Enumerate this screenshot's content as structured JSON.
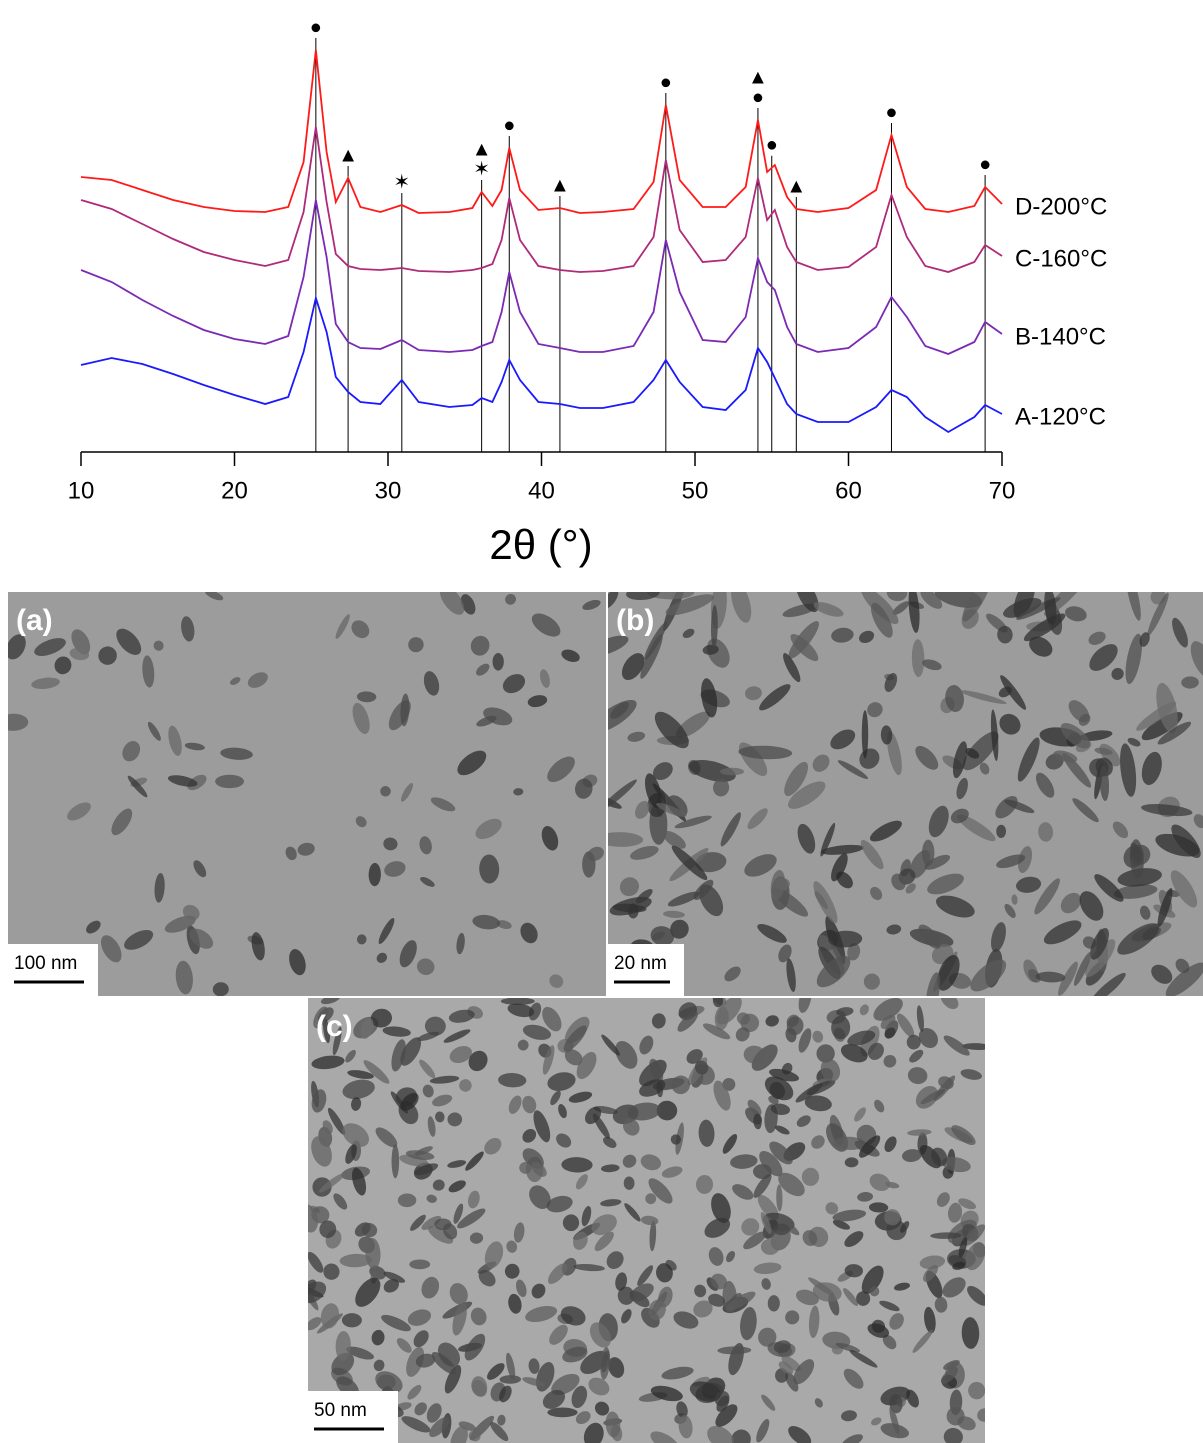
{
  "chart_data": {
    "type": "line",
    "xlabel": "2θ (°)",
    "xlim": [
      10,
      70
    ],
    "xticks": [
      10,
      20,
      30,
      40,
      50,
      60,
      70
    ],
    "ylim": [
      0,
      432
    ],
    "x": [
      10,
      12,
      14,
      16,
      18,
      20,
      22,
      23.5,
      24.5,
      25.3,
      26,
      26.6,
      27.4,
      28.2,
      29.5,
      30.9,
      32,
      34,
      35.5,
      36.1,
      36.8,
      37.4,
      37.9,
      38.6,
      39.8,
      41.2,
      42.5,
      44,
      46,
      47.3,
      48.1,
      49,
      50.5,
      52,
      53.3,
      54.1,
      54.7,
      55.2,
      56,
      56.6,
      58,
      60,
      61.8,
      62.8,
      63.8,
      65,
      66.5,
      68.2,
      68.9,
      70
    ],
    "series": [
      {
        "name": "D-200°C",
        "color": "#ff1a1a",
        "values": [
          275,
          272,
          262,
          252,
          245,
          241,
          240,
          245,
          290,
          402,
          300,
          250,
          274,
          245,
          240,
          247,
          239,
          240,
          244,
          260,
          246,
          262,
          304,
          262,
          242,
          244,
          239,
          240,
          243,
          270,
          347,
          272,
          245,
          245,
          265,
          332,
          280,
          287,
          255,
          243,
          240,
          244,
          262,
          317,
          265,
          243,
          240,
          246,
          265,
          248
        ]
      },
      {
        "name": "C-160°C",
        "color": "#b02a7a",
        "values": [
          252,
          243,
          228,
          213,
          200,
          192,
          186,
          192,
          240,
          325,
          250,
          198,
          186,
          183,
          182,
          184,
          181,
          180,
          182,
          184,
          188,
          212,
          254,
          212,
          186,
          182,
          180,
          181,
          186,
          215,
          292,
          222,
          190,
          192,
          215,
          274,
          232,
          242,
          205,
          190,
          182,
          185,
          205,
          257,
          215,
          186,
          180,
          190,
          207,
          196
        ]
      },
      {
        "name": "B-140°C",
        "color": "#7a2ab4",
        "values": [
          182,
          170,
          152,
          136,
          122,
          113,
          108,
          116,
          175,
          252,
          195,
          128,
          110,
          104,
          103,
          112,
          102,
          100,
          102,
          106,
          110,
          140,
          180,
          140,
          108,
          104,
          100,
          100,
          106,
          140,
          212,
          160,
          112,
          110,
          135,
          194,
          170,
          162,
          125,
          108,
          100,
          104,
          125,
          155,
          135,
          106,
          98,
          110,
          130,
          118
        ]
      },
      {
        "name": "A-120°C",
        "color": "#1a1aff",
        "values": [
          87,
          94,
          88,
          78,
          67,
          57,
          48,
          55,
          100,
          154,
          120,
          75,
          60,
          50,
          48,
          72,
          50,
          45,
          47,
          54,
          50,
          70,
          92,
          72,
          50,
          48,
          44,
          44,
          50,
          72,
          92,
          70,
          45,
          42,
          62,
          104,
          90,
          74,
          48,
          38,
          30,
          30,
          45,
          62,
          55,
          35,
          20,
          35,
          47,
          38
        ]
      }
    ],
    "reflections": [
      {
        "x": 25.3,
        "symbols": [
          "●"
        ]
      },
      {
        "x": 27.4,
        "symbols": [
          "▲"
        ]
      },
      {
        "x": 30.9,
        "symbols": [
          "✶"
        ]
      },
      {
        "x": 36.1,
        "symbols": [
          "✶",
          "▲"
        ]
      },
      {
        "x": 37.9,
        "symbols": [
          "●"
        ]
      },
      {
        "x": 41.2,
        "symbols": [
          "▲"
        ]
      },
      {
        "x": 48.1,
        "symbols": [
          "●"
        ]
      },
      {
        "x": 54.1,
        "symbols": [
          "●",
          "▲"
        ]
      },
      {
        "x": 55.0,
        "symbols": [
          "●"
        ]
      },
      {
        "x": 56.6,
        "symbols": [
          "▲"
        ]
      },
      {
        "x": 62.8,
        "symbols": [
          "●"
        ]
      },
      {
        "x": 68.9,
        "symbols": [
          "●"
        ]
      }
    ]
  },
  "micrographs": [
    {
      "label": "(a)",
      "scale_bar": "100 nm"
    },
    {
      "label": "(b)",
      "scale_bar": "20 nm"
    },
    {
      "label": "(c)",
      "scale_bar": "50 nm"
    }
  ]
}
